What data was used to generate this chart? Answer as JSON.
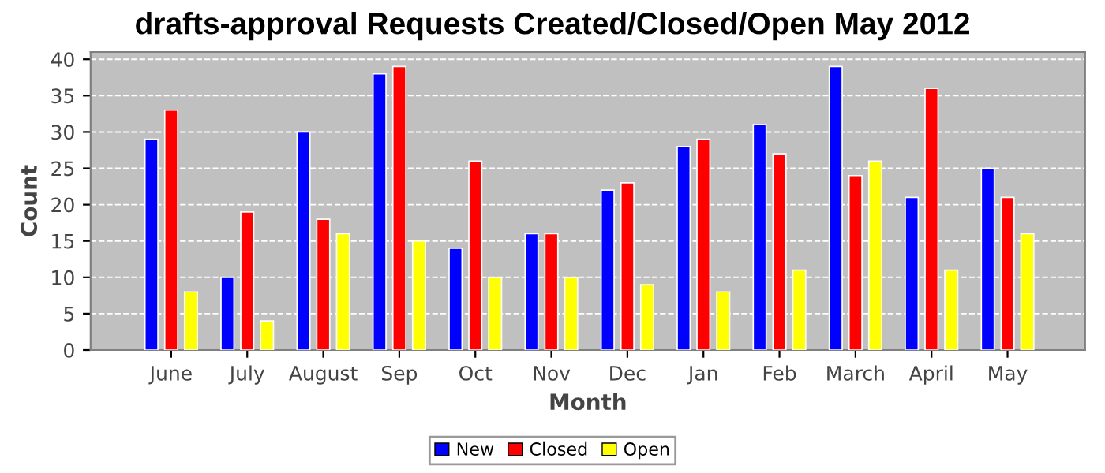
{
  "chart_data": {
    "type": "bar",
    "title": "drafts-approval Requests Created/Closed/Open May 2012",
    "xlabel": "Month",
    "ylabel": "Count",
    "categories": [
      "June",
      "July",
      "August",
      "Sep",
      "Oct",
      "Nov",
      "Dec",
      "Jan",
      "Feb",
      "March",
      "April",
      "May"
    ],
    "series": [
      {
        "name": "New",
        "color": "#0000ff",
        "values": [
          29,
          10,
          30,
          38,
          14,
          16,
          22,
          28,
          31,
          39,
          21,
          25
        ]
      },
      {
        "name": "Closed",
        "color": "#ff0000",
        "values": [
          33,
          19,
          18,
          39,
          26,
          16,
          23,
          29,
          27,
          24,
          36,
          21
        ]
      },
      {
        "name": "Open",
        "color": "#ffff00",
        "values": [
          8,
          4,
          16,
          15,
          10,
          10,
          9,
          8,
          11,
          26,
          11,
          16
        ]
      }
    ],
    "ylim": [
      0,
      41
    ],
    "yticks": [
      0,
      5,
      10,
      15,
      20,
      25,
      30,
      35,
      40
    ],
    "grid": "y",
    "legend": "bottom"
  }
}
